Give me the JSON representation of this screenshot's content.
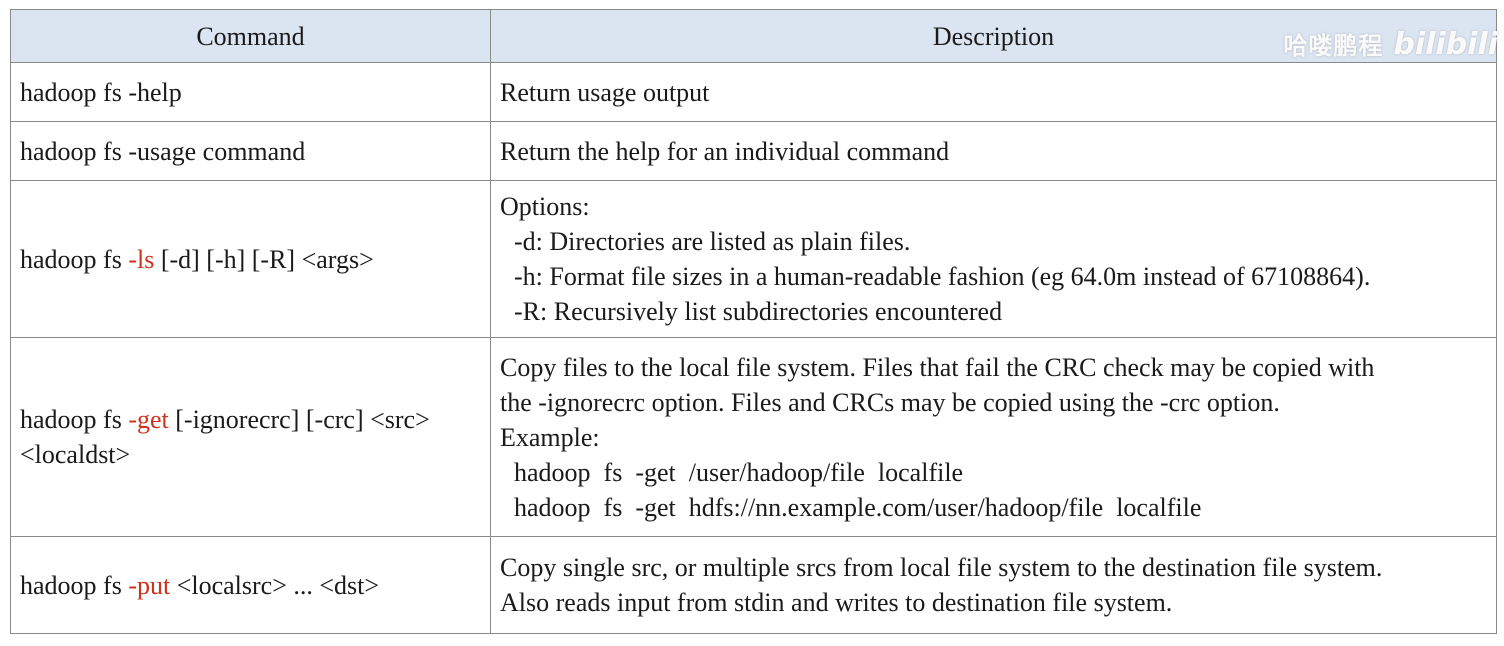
{
  "table": {
    "headers": {
      "command": "Command",
      "description": "Description"
    },
    "rows": [
      {
        "command": {
          "prefix": "hadoop fs -help",
          "highlight": "",
          "suffix": "",
          "line2": ""
        },
        "description": [
          "Return usage output"
        ]
      },
      {
        "command": {
          "prefix": "hadoop fs -usage command",
          "highlight": "",
          "suffix": "",
          "line2": ""
        },
        "description": [
          "Return the help for an individual command"
        ]
      },
      {
        "command": {
          "prefix": "hadoop fs ",
          "highlight": "-ls",
          "suffix": " [-d] [-h] [-R] <args>",
          "line2": ""
        },
        "description": [
          "Options:",
          "-d: Directories are listed as plain files.",
          "-h: Format file sizes in a human-readable fashion (eg 64.0m instead of 67108864).",
          "-R: Recursively list subdirectories encountered"
        ]
      },
      {
        "command": {
          "prefix": "hadoop fs ",
          "highlight": "-get",
          "suffix": " [-ignorecrc] [-crc] <src>",
          "line2": "<localdst>"
        },
        "description": [
          "Copy files to the local file system. Files that fail the CRC check may be copied with",
          "the -ignorecrc option. Files and CRCs may be copied using the -crc option.",
          "Example:",
          "hadoop  fs  -get  /user/hadoop/file  localfile",
          "hadoop  fs  -get  hdfs://nn.example.com/user/hadoop/file  localfile"
        ]
      },
      {
        "command": {
          "prefix": "hadoop fs ",
          "highlight": "-put",
          "suffix": " <localsrc> ... <dst>",
          "line2": ""
        },
        "description": [
          "Copy single src, or multiple srcs from local file system to the destination file system.",
          "Also reads input from stdin and writes to destination file system."
        ]
      }
    ]
  },
  "watermark": {
    "author": "哈喽鹏程",
    "logo": "bilibili"
  },
  "colors": {
    "header_bg": "#dbe4f1",
    "highlight": "#d0301e",
    "border": "#8a8a8a"
  }
}
